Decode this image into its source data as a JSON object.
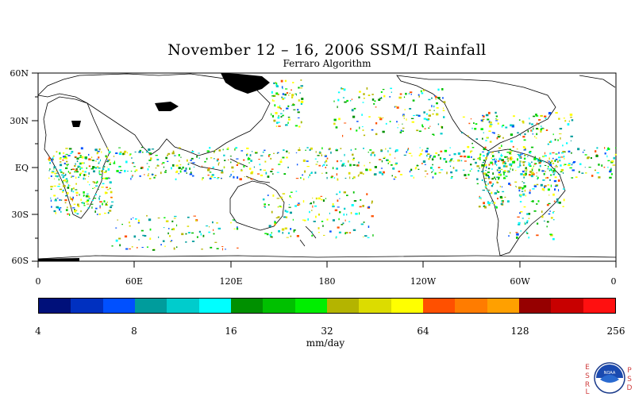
{
  "title": "November 12 – 16, 2006 SSM/I Rainfall",
  "subtitle": "Ferraro Algorithm",
  "lat_labels": [
    "60N",
    "30N",
    "EQ",
    "30S",
    "60S"
  ],
  "lon_labels": [
    "0",
    "60E",
    "120E",
    "180",
    "120W",
    "60W",
    "0"
  ],
  "colorbar": {
    "colors": [
      "#00107a",
      "#0030c0",
      "#0050ff",
      "#009c9c",
      "#00cccc",
      "#00ffff",
      "#009000",
      "#00c000",
      "#00ee00",
      "#b4b400",
      "#dcdc00",
      "#ffff00",
      "#ff5000",
      "#ff7c00",
      "#ffa000",
      "#960000",
      "#c80000",
      "#ff1010"
    ],
    "tick_labels": [
      "4",
      "8",
      "16",
      "32",
      "64",
      "128",
      "256"
    ],
    "units": "mm/day"
  },
  "logo": {
    "left_letters": [
      "E",
      "S",
      "R",
      "L"
    ],
    "right_letters": [
      "P",
      "S",
      "D"
    ],
    "emblem_text": "NOAA"
  }
}
